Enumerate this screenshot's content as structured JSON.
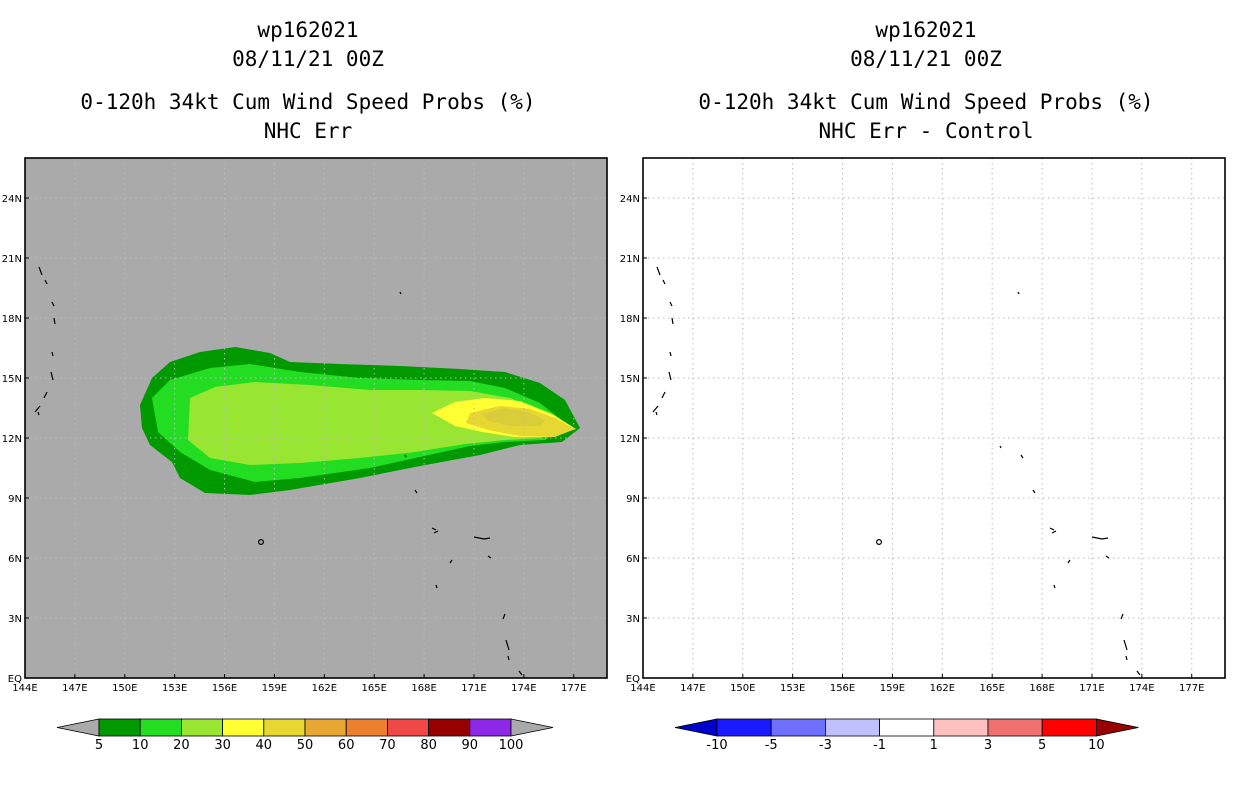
{
  "panels": [
    {
      "storm_id": "wp162021",
      "datetime": "08/11/21 00Z",
      "product": "0-120h 34kt Cum Wind Speed Probs (%)",
      "subtitle": "NHC Err"
    },
    {
      "storm_id": "wp162021",
      "datetime": "08/11/21 00Z",
      "product": "0-120h 34kt Cum Wind Speed Probs (%)",
      "subtitle": "NHC Err - Control"
    }
  ],
  "axes": {
    "lon_labels": [
      "144E",
      "147E",
      "150E",
      "153E",
      "156E",
      "159E",
      "162E",
      "165E",
      "168E",
      "171E",
      "174E",
      "177E"
    ],
    "lat_labels": [
      "EQ",
      "3N",
      "6N",
      "9N",
      "12N",
      "15N",
      "18N",
      "21N",
      "24N"
    ]
  },
  "colorbar_left": {
    "labels": [
      "5",
      "10",
      "20",
      "30",
      "40",
      "50",
      "60",
      "70",
      "80",
      "90",
      "100"
    ],
    "colors": [
      "#009900",
      "#22dd22",
      "#99e632",
      "#ffff33",
      "#e6d733",
      "#e6a833",
      "#ed8030",
      "#f04848",
      "#960000",
      "#8c28e6"
    ]
  },
  "colorbar_right": {
    "labels": [
      "-10",
      "-5",
      "-3",
      "-1",
      "1",
      "3",
      "5",
      "10"
    ],
    "colors": [
      "#0000cc",
      "#1a1aff",
      "#7070ff",
      "#c0c0ff",
      "#ffffff",
      "#ffc0c0",
      "#f07070",
      "#ff0000",
      "#990000"
    ]
  },
  "chart_data": {
    "type": "heatmap",
    "title": "0-120h 34kt Cum Wind Speed Probs (%)",
    "x_range": [
      144,
      179
    ],
    "y_range": [
      0,
      26
    ],
    "probability_contours": [
      {
        "level": 5,
        "color": "#009900"
      },
      {
        "level": 10,
        "color": "#22dd22"
      },
      {
        "level": 20,
        "color": "#99e632"
      },
      {
        "level": 30,
        "color": "#ffff33"
      },
      {
        "level": 40,
        "color": "#e6d733"
      }
    ],
    "difference_field": "none"
  },
  "colors": {
    "plot_background_left": "#aaaaaa",
    "plot_background_right": "#ffffff",
    "grid": "#bbbbbb"
  }
}
